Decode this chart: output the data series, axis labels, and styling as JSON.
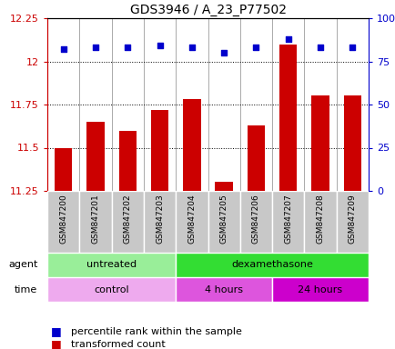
{
  "title": "GDS3946 / A_23_P77502",
  "samples": [
    "GSM847200",
    "GSM847201",
    "GSM847202",
    "GSM847203",
    "GSM847204",
    "GSM847205",
    "GSM847206",
    "GSM847207",
    "GSM847208",
    "GSM847209"
  ],
  "transformed_counts": [
    11.5,
    11.65,
    11.6,
    11.72,
    11.78,
    11.3,
    11.63,
    12.1,
    11.8,
    11.8
  ],
  "percentile_ranks": [
    82,
    83,
    83,
    84,
    83,
    80,
    83,
    88,
    83,
    83
  ],
  "ylim_left": [
    11.25,
    12.25
  ],
  "ylim_right": [
    0,
    100
  ],
  "yticks_left": [
    11.25,
    11.5,
    11.75,
    12.0,
    12.25
  ],
  "yticks_right": [
    0,
    25,
    50,
    75,
    100
  ],
  "bar_color": "#cc0000",
  "dot_color": "#0000cc",
  "agent_groups": [
    {
      "label": "untreated",
      "start": 0,
      "end": 4,
      "color": "#99EE99"
    },
    {
      "label": "dexamethasone",
      "start": 4,
      "end": 10,
      "color": "#33DD33"
    }
  ],
  "time_groups": [
    {
      "label": "control",
      "start": 0,
      "end": 4,
      "color": "#EEAAEE"
    },
    {
      "label": "4 hours",
      "start": 4,
      "end": 7,
      "color": "#DD55DD"
    },
    {
      "label": "24 hours",
      "start": 7,
      "end": 10,
      "color": "#CC00CC"
    }
  ],
  "legend_bar_label": "transformed count",
  "legend_dot_label": "percentile rank within the sample",
  "bar_bottom": 11.25,
  "xtick_bg": "#C8C8C8"
}
